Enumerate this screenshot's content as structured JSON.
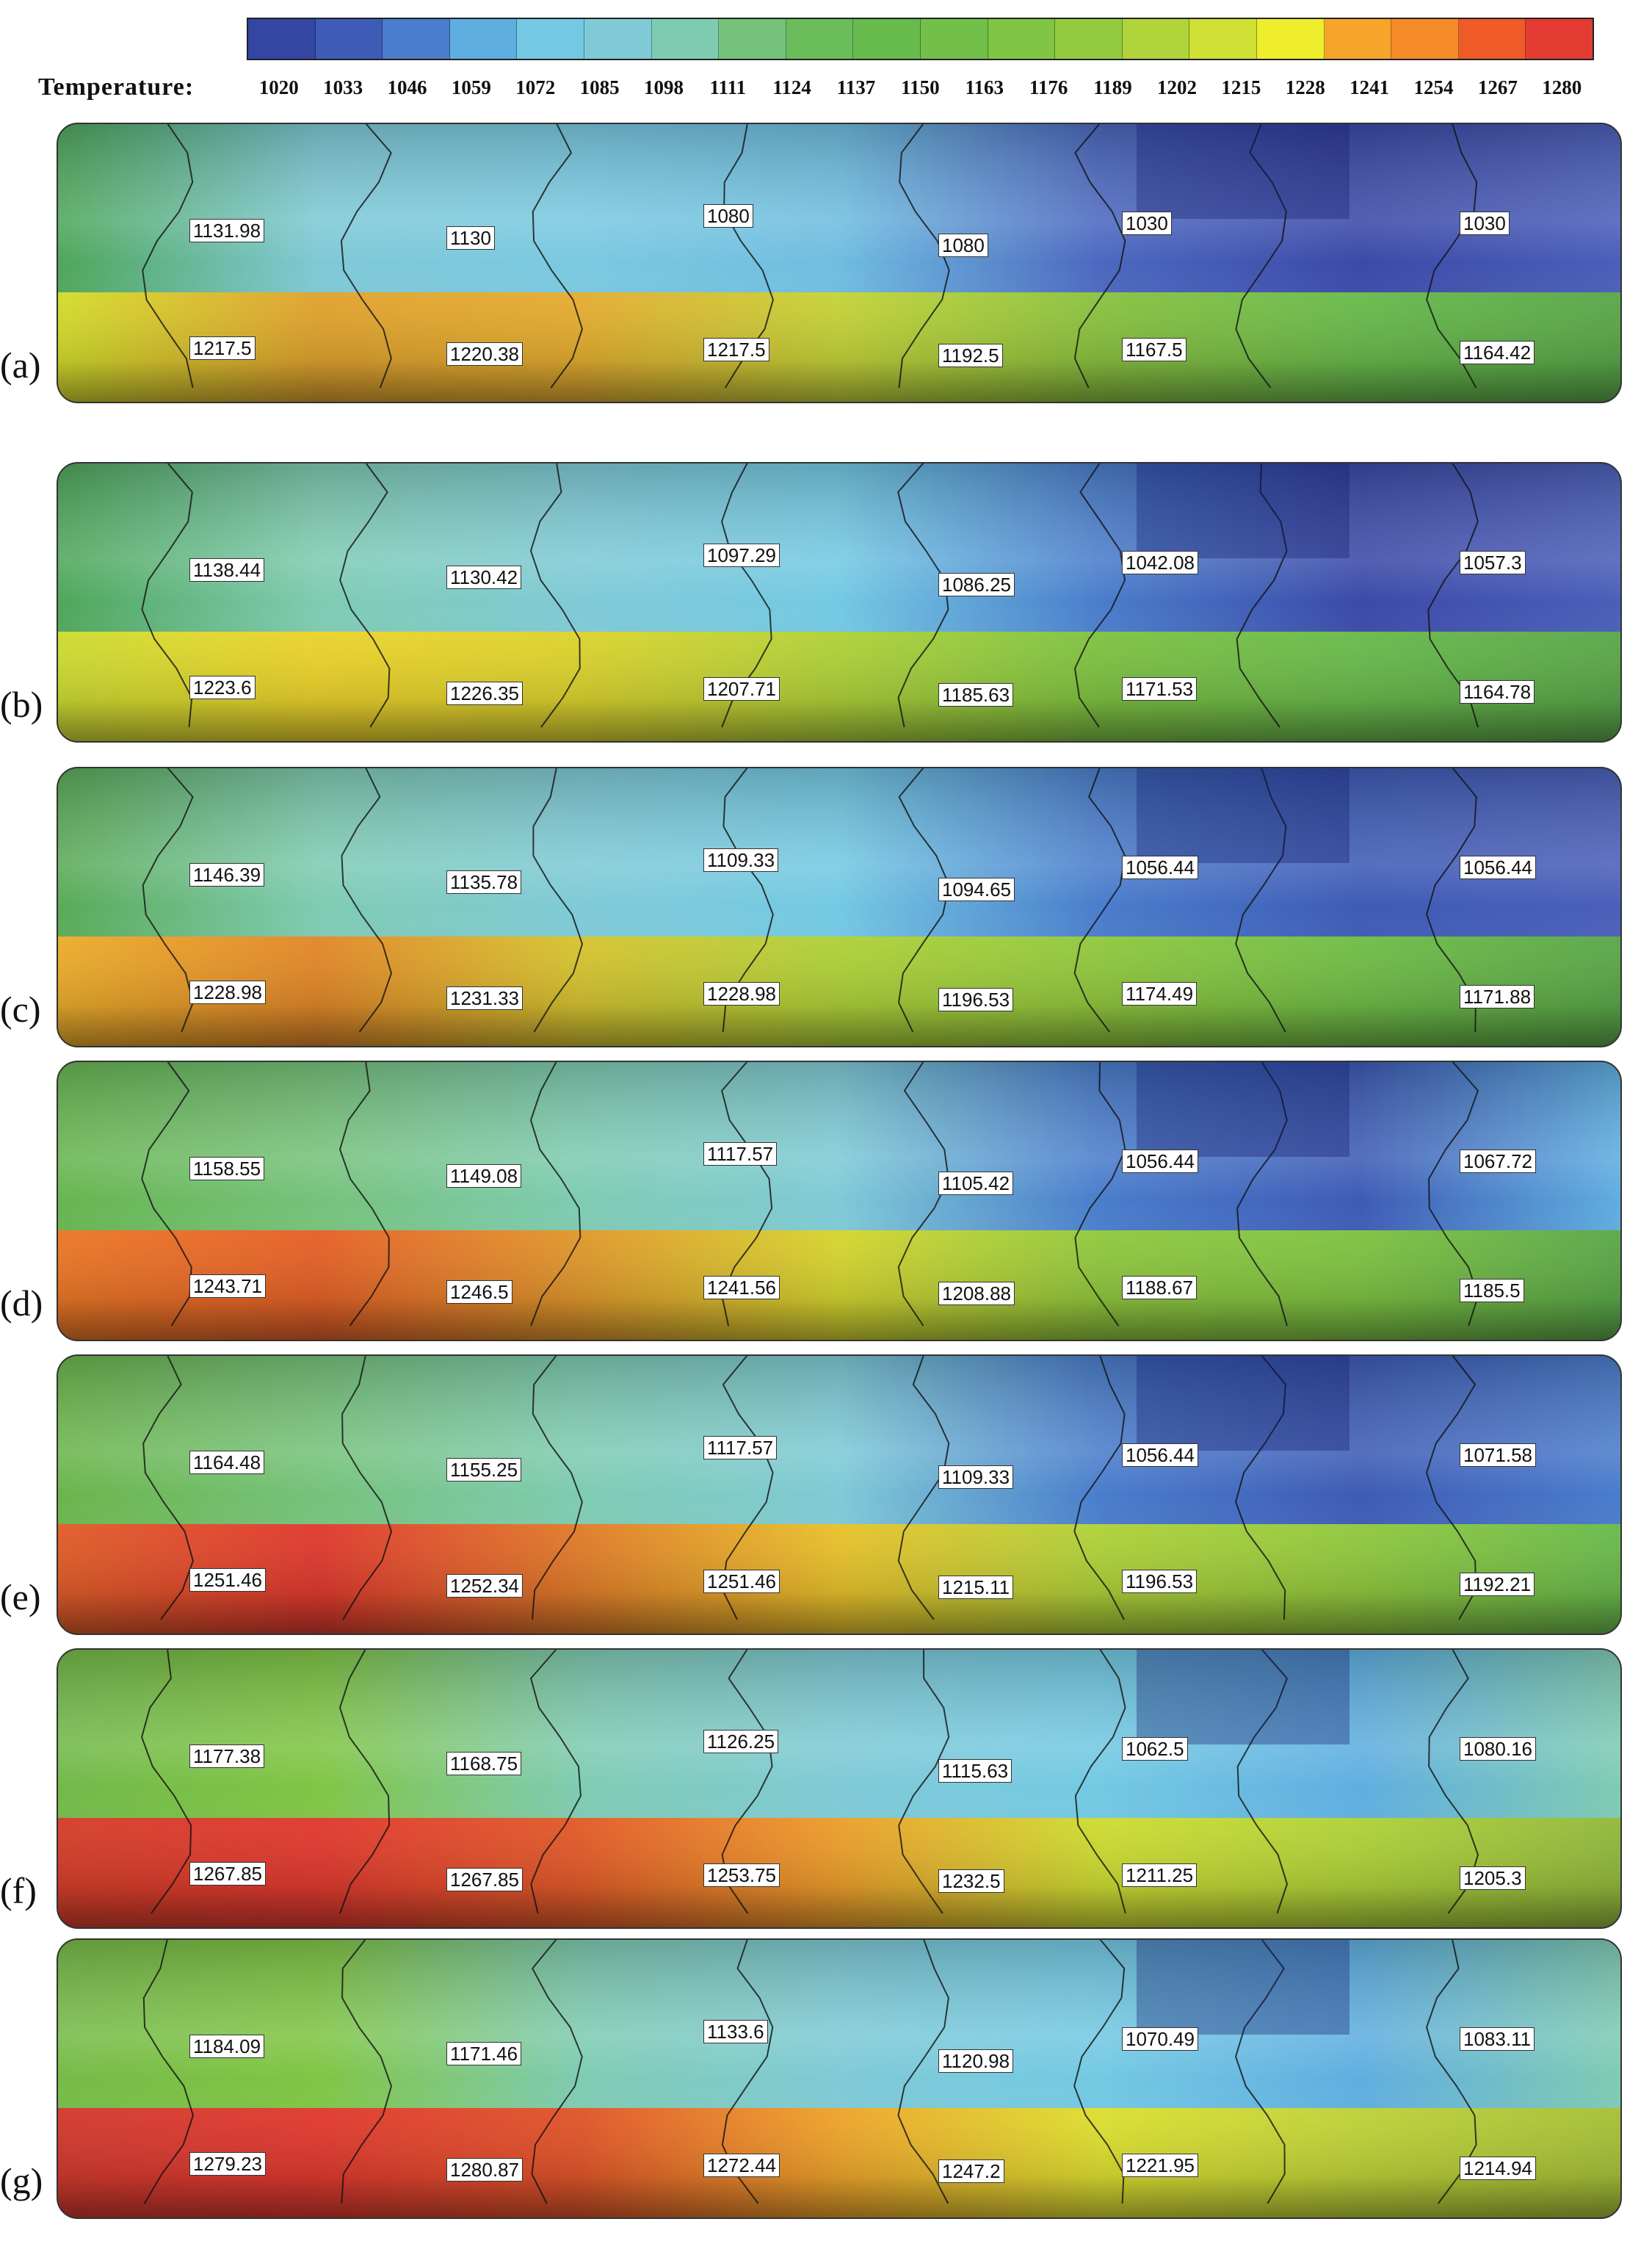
{
  "colorbar": {
    "label": "Temperature:",
    "ticks": [
      "1020",
      "1033",
      "1046",
      "1059",
      "1072",
      "1085",
      "1098",
      "1111",
      "1124",
      "1137",
      "1150",
      "1163",
      "1176",
      "1189",
      "1202",
      "1215",
      "1228",
      "1241",
      "1254",
      "1267",
      "1280"
    ],
    "colors": [
      "#3346a2",
      "#3e5bb5",
      "#4a7dcc",
      "#5faee0",
      "#73c9e3",
      "#7fcad6",
      "#7fcbb2",
      "#76c27b",
      "#6bbd5c",
      "#67bb4d",
      "#72c049",
      "#80c544",
      "#93cb40",
      "#b2d43b",
      "#d0df34",
      "#efee2d",
      "#f6a52a",
      "#f58b29",
      "#ee5a28",
      "#e33b31"
    ]
  },
  "panels": [
    {
      "label": "(a)",
      "top_color": [
        "#4fa65a",
        "#7fc9d6",
        "#7ac9e1",
        "#6fbde0",
        "#4c68c0",
        "#3b4aa7",
        "#4b5fb9"
      ],
      "bottom_color": [
        "#d6df2f",
        "#e3a530",
        "#e7b032",
        "#c7d63a",
        "#8dc542",
        "#6bbd4e",
        "#5caa4c"
      ],
      "top_values": [
        "1131.98",
        "1130",
        "1080",
        "1080",
        "1030",
        "1030"
      ],
      "bottom_values": [
        "1217.5",
        "1220.38",
        "1217.5",
        "1192.5",
        "1167.5",
        "1164.42"
      ]
    },
    {
      "label": "(b)",
      "top_color": [
        "#4fa65a",
        "#7fcbb2",
        "#7fcad6",
        "#73c9e3",
        "#4a7dcc",
        "#3b4aa7",
        "#4b5fb9"
      ],
      "bottom_color": [
        "#d0df34",
        "#efd52d",
        "#dfd630",
        "#b2d43b",
        "#80c544",
        "#6bbd4e",
        "#5caa4c"
      ],
      "top_values": [
        "1138.44",
        "1130.42",
        "1097.29",
        "1086.25",
        "1042.08",
        "1057.3"
      ],
      "bottom_values": [
        "1223.6",
        "1226.35",
        "1207.71",
        "1185.63",
        "1171.53",
        "1164.78"
      ]
    },
    {
      "label": "(c)",
      "top_color": [
        "#5aaa56",
        "#7fcbb2",
        "#7fcad6",
        "#73c9e3",
        "#4a7dcc",
        "#3e5bb5",
        "#4b5fb9"
      ],
      "bottom_color": [
        "#efb02d",
        "#e58a2b",
        "#d9c732",
        "#b2d43b",
        "#93cb40",
        "#72c049",
        "#5caa4c"
      ],
      "top_values": [
        "1146.39",
        "1135.78",
        "1109.33",
        "1094.65",
        "1056.44",
        "1056.44"
      ],
      "bottom_values": [
        "1228.98",
        "1231.33",
        "1228.98",
        "1196.53",
        "1174.49",
        "1171.88"
      ]
    },
    {
      "label": "(d)",
      "top_color": [
        "#67b550",
        "#76c27b",
        "#7fcbb2",
        "#7fcad6",
        "#4a7dcc",
        "#3e5bb5",
        "#5faee0"
      ],
      "bottom_color": [
        "#ee7a28",
        "#e8632a",
        "#e39a2e",
        "#d8d831",
        "#93cb40",
        "#80c544",
        "#5caa4c"
      ],
      "top_values": [
        "1158.55",
        "1149.08",
        "1117.57",
        "1105.42",
        "1056.44",
        "1067.72"
      ],
      "bottom_values": [
        "1243.71",
        "1246.5",
        "1241.56",
        "1208.88",
        "1188.67",
        "1185.5"
      ]
    },
    {
      "label": "(e)",
      "top_color": [
        "#6bb54c",
        "#76c27b",
        "#7fcbb2",
        "#7fcad6",
        "#4a7dcc",
        "#3e5bb5",
        "#4a7dcc"
      ],
      "bottom_color": [
        "#e3602a",
        "#e33b31",
        "#e37e2b",
        "#ebc42d",
        "#b2d43b",
        "#93cb40",
        "#6bbd4e"
      ],
      "top_values": [
        "1164.48",
        "1155.25",
        "1117.57",
        "1109.33",
        "1056.44",
        "1071.58"
      ],
      "bottom_values": [
        "1251.46",
        "1252.34",
        "1251.46",
        "1215.11",
        "1196.53",
        "1192.21"
      ]
    },
    {
      "label": "(f)",
      "top_color": [
        "#72b94a",
        "#80c544",
        "#7fcbb2",
        "#7fcad6",
        "#73c9e3",
        "#5faee0",
        "#7fcbb2"
      ],
      "bottom_color": [
        "#d8402c",
        "#e33b31",
        "#e55d2b",
        "#efa12d",
        "#d0df34",
        "#b2d43b",
        "#93bb3e"
      ],
      "top_values": [
        "1177.38",
        "1168.75",
        "1126.25",
        "1115.63",
        "1062.5",
        "1080.16"
      ],
      "bottom_values": [
        "1267.85",
        "1267.85",
        "1253.75",
        "1232.5",
        "1211.25",
        "1205.3"
      ]
    },
    {
      "label": "(g)",
      "top_color": [
        "#76bb48",
        "#80c544",
        "#7fcbb2",
        "#7fcad6",
        "#73c9e3",
        "#5faee0",
        "#7fcbb2"
      ],
      "bottom_color": [
        "#d53b30",
        "#e33b31",
        "#e3572b",
        "#f1a72c",
        "#e0e232",
        "#c0d53a",
        "#a9c23a"
      ],
      "top_values": [
        "1184.09",
        "1171.46",
        "1133.6",
        "1120.98",
        "1070.49",
        "1083.11"
      ],
      "bottom_values": [
        "1279.23",
        "1280.87",
        "1272.44",
        "1247.2",
        "1221.95",
        "1214.94"
      ]
    }
  ]
}
